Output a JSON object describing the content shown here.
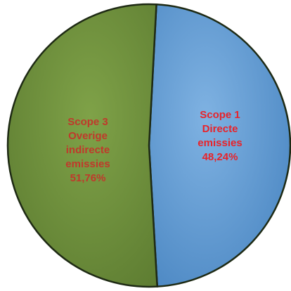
{
  "chart_data": {
    "type": "pie",
    "title": "",
    "slices": [
      {
        "label_lines": [
          "Scope 1",
          "Directe",
          "emissies"
        ],
        "percent_label": "48,24%",
        "value": 48.24,
        "color": "#5b9bd5",
        "label_color": "#e8232a"
      },
      {
        "label_lines": [
          "Scope 3",
          "Overige",
          "indirecte",
          "emissies"
        ],
        "percent_label": "51,76%",
        "value": 51.76,
        "color": "#6b8e3a",
        "label_color": "#c0392b"
      }
    ],
    "start_angle_deg": 0,
    "direction": "clockwise",
    "legend": "none"
  }
}
